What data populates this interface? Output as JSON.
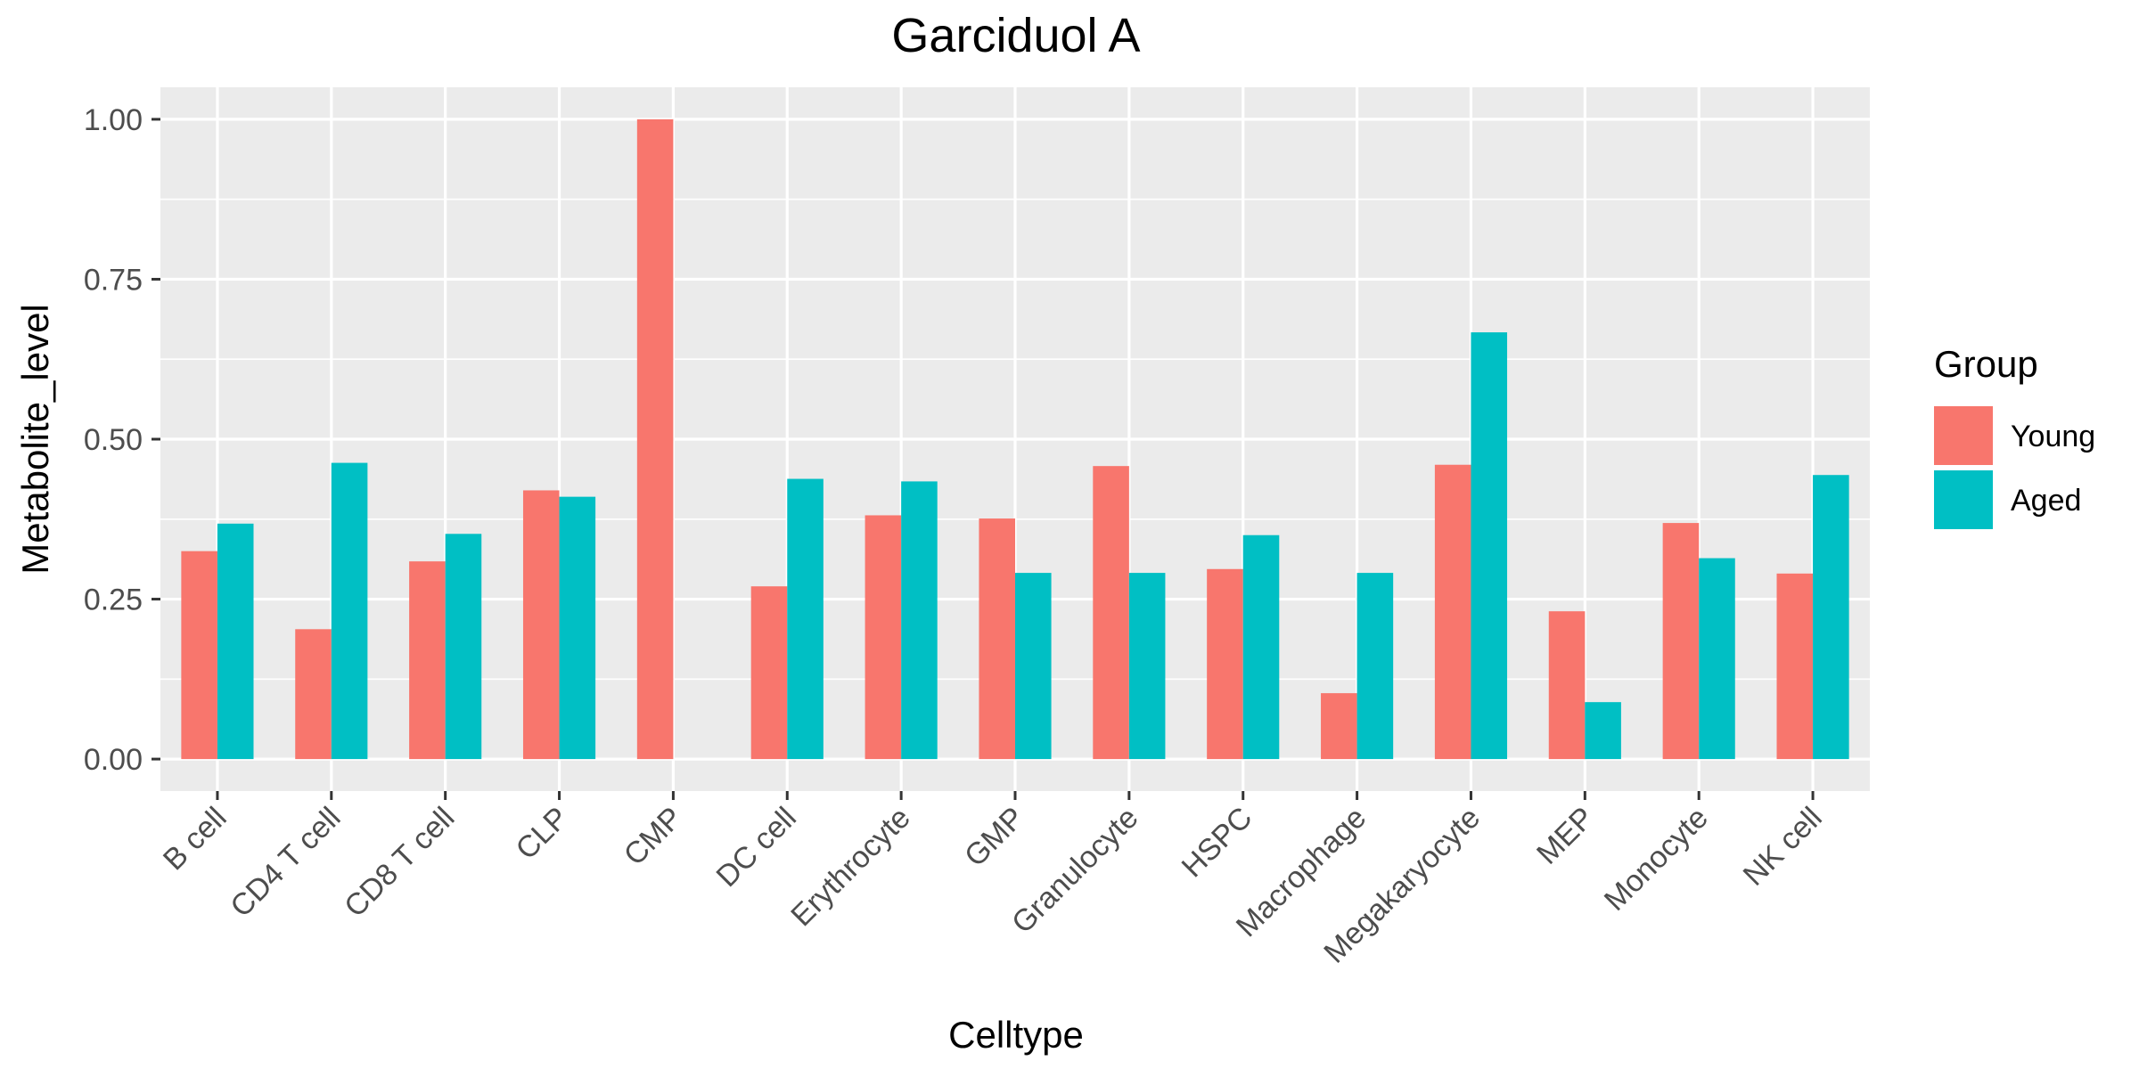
{
  "chart_data": {
    "type": "bar",
    "title": "Garciduol A",
    "xlabel": "Celltype",
    "ylabel": "Metabolite_level",
    "ylim": [
      -0.05,
      1.05
    ],
    "yticks": [
      0.0,
      0.25,
      0.5,
      0.75,
      1.0
    ],
    "ytick_labels": [
      "0.00",
      "0.25",
      "0.50",
      "0.75",
      "1.00"
    ],
    "grid": true,
    "legend_position": "right",
    "legend_title": "Group",
    "categories": [
      "B cell",
      "CD4 T cell",
      "CD8 T cell",
      "CLP",
      "CMP",
      "DC cell",
      "Erythrocyte",
      "GMP",
      "Granulocyte",
      "HSPC",
      "Macrophage",
      "Megakaryocyte",
      "MEP",
      "Monocyte",
      "NK cell"
    ],
    "series": [
      {
        "name": "Young",
        "color": "#F8766D",
        "values": [
          0.325,
          0.203,
          0.309,
          0.42,
          1.0,
          0.27,
          0.381,
          0.376,
          0.458,
          0.297,
          0.103,
          0.46,
          0.231,
          0.369,
          0.29
        ]
      },
      {
        "name": "Aged",
        "color": "#00BFC4",
        "values": [
          0.368,
          0.463,
          0.352,
          0.41,
          0.0,
          0.438,
          0.434,
          0.291,
          0.291,
          0.35,
          0.291,
          0.667,
          0.089,
          0.314,
          0.444
        ]
      }
    ]
  }
}
